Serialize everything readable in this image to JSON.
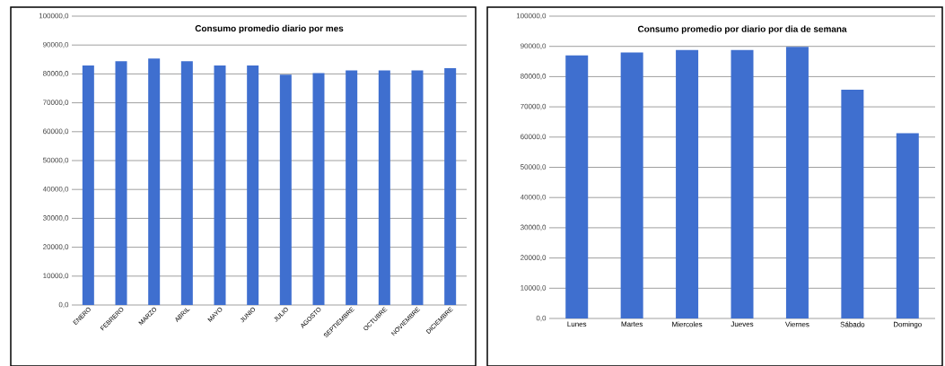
{
  "chart_data": [
    {
      "type": "bar",
      "title": "Consumo promedio diario por mes",
      "categories": [
        "ENERO",
        "FEBRERO",
        "MARZO",
        "ABRIL",
        "MAYO",
        "JUNIO",
        "JULIO",
        "AGOSTO",
        "SEPTIEMBRE",
        "OCTUBRE",
        "NOVIEMBRE",
        "DICIEMBRE"
      ],
      "values": [
        82900,
        84400,
        85300,
        84400,
        82900,
        82900,
        79700,
        80300,
        81200,
        81200,
        81200,
        82000
      ],
      "color": "#3f6fcf",
      "ylim": [
        0,
        100000
      ],
      "yticks": [
        {
          "value": 0,
          "label": "0,0"
        },
        {
          "value": 10000,
          "label": "10000,0"
        },
        {
          "value": 20000,
          "label": "20000,0"
        },
        {
          "value": 30000,
          "label": "30000,0"
        },
        {
          "value": 40000,
          "label": "40000,0"
        },
        {
          "value": 50000,
          "label": "50000,0"
        },
        {
          "value": 60000,
          "label": "60000,0"
        },
        {
          "value": 70000,
          "label": "70000,0"
        },
        {
          "value": 80000,
          "label": "80000,0"
        },
        {
          "value": 90000,
          "label": "90000,0"
        },
        {
          "value": 100000,
          "label": "100000,0"
        }
      ],
      "grid": "y"
    },
    {
      "type": "bar",
      "title": "Consumo promedio por diario por dia de semana",
      "categories": [
        "Lunes",
        "Martes",
        "Miercoles",
        "Jueves",
        "Viernes",
        "Sábado",
        "Domingo"
      ],
      "values": [
        87000,
        88000,
        88800,
        88800,
        89800,
        75700,
        61300
      ],
      "color": "#3f6fcf",
      "ylim": [
        0,
        100000
      ],
      "yticks": [
        {
          "value": 0,
          "label": "0,0"
        },
        {
          "value": 10000,
          "label": "10000,0"
        },
        {
          "value": 20000,
          "label": "20000,0"
        },
        {
          "value": 30000,
          "label": "30000,0"
        },
        {
          "value": 40000,
          "label": "40000,0"
        },
        {
          "value": 50000,
          "label": "50000,0"
        },
        {
          "value": 60000,
          "label": "60000,0"
        },
        {
          "value": 70000,
          "label": "70000,0"
        },
        {
          "value": 80000,
          "label": "80000,0"
        },
        {
          "value": 90000,
          "label": "90000,0"
        },
        {
          "value": 100000,
          "label": "100000,0"
        }
      ],
      "grid": "y"
    }
  ]
}
